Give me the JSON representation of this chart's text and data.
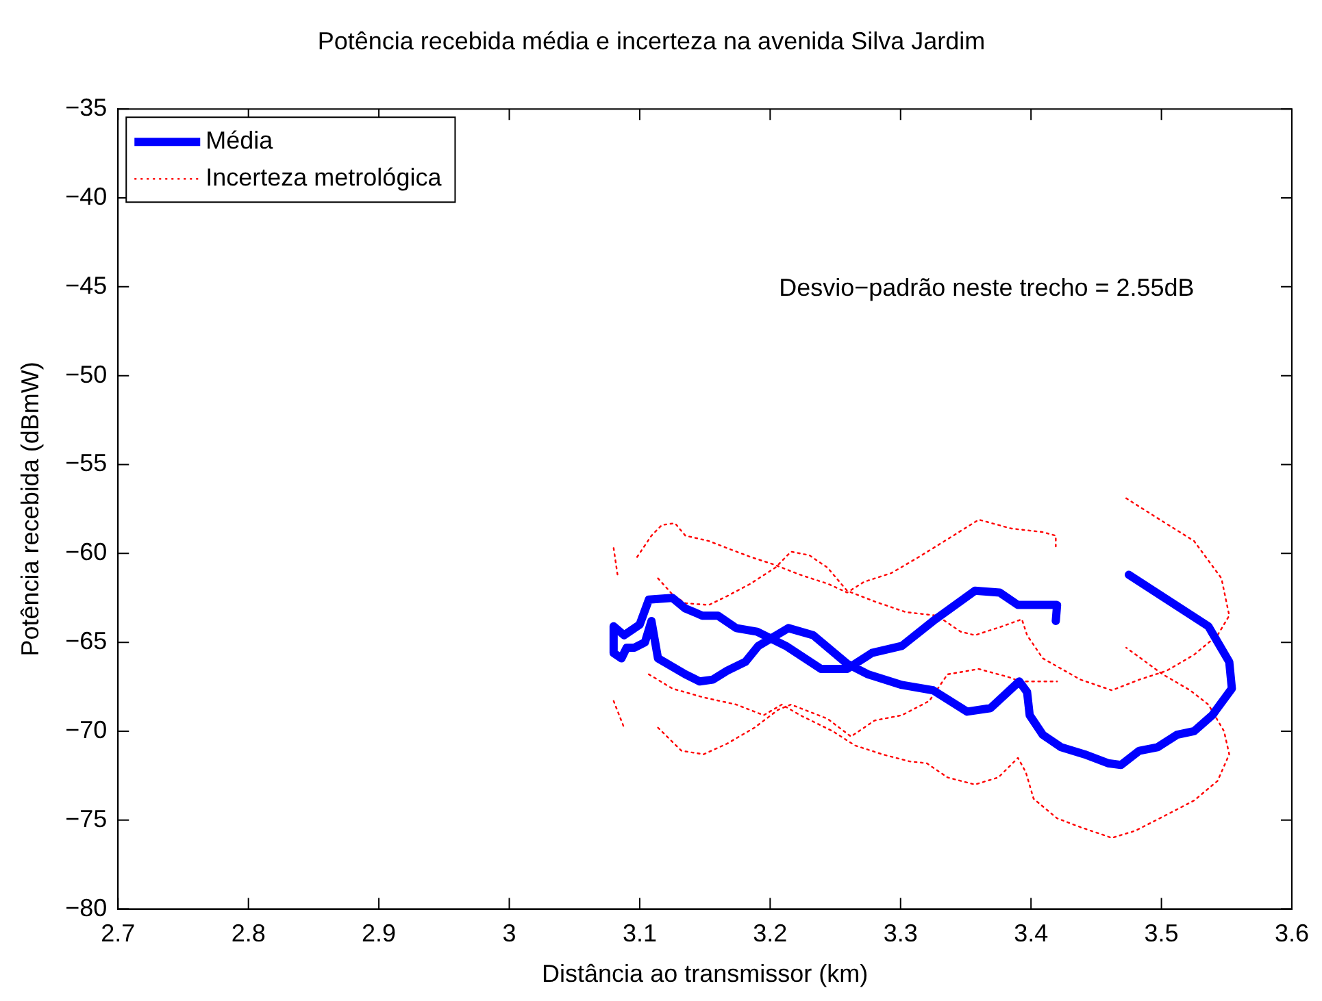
{
  "chart_data": {
    "type": "line",
    "title": "Potência recebida média e incerteza na avenida Silva Jardim",
    "xlabel": "Distância ao transmissor (km)",
    "ylabel": "Potência recebida (dBmW)",
    "xlim": [
      2.7,
      3.6
    ],
    "xticks": [
      2.7,
      2.8,
      2.9,
      3,
      3.1,
      3.2,
      3.3,
      3.4,
      3.5,
      3.6
    ],
    "ylim": [
      -80,
      -35
    ],
    "yticks": [
      {
        "value": -80,
        "label": "−80"
      },
      {
        "value": -75,
        "label": "−75"
      },
      {
        "value": -70,
        "label": "−70"
      },
      {
        "value": -65,
        "label": "−65"
      },
      {
        "value": -60,
        "label": "−60"
      },
      {
        "value": -55,
        "label": "−55"
      },
      {
        "value": -50,
        "label": "−50"
      },
      {
        "value": -45,
        "label": "−45"
      },
      {
        "value": -40,
        "label": "−40"
      },
      {
        "value": -35,
        "label": "−35"
      }
    ],
    "grid": false,
    "legend": "top left",
    "marker": "none",
    "annotations": [
      "Desvio−padrão neste trecho = 2.55dB"
    ],
    "series": [
      {
        "name": "Média",
        "color": "#0000ff",
        "line_style": "solid",
        "x": [
          3.419,
          3.42,
          3.39,
          3.376,
          3.357,
          3.325,
          3.301,
          3.278,
          3.259,
          3.239,
          3.212,
          3.19,
          3.174,
          3.16,
          3.148,
          3.135,
          3.125,
          3.107,
          3.1,
          3.088,
          3.08,
          3.08,
          3.086,
          3.09,
          3.096,
          3.104,
          3.109,
          3.114,
          3.135,
          3.146,
          3.156,
          3.167,
          3.181,
          3.191,
          3.214,
          3.233,
          3.259,
          3.275,
          3.301,
          3.325,
          3.351,
          3.369,
          3.391,
          3.397,
          3.399,
          3.409,
          3.423,
          3.441,
          3.459,
          3.469,
          3.483,
          3.497,
          3.512,
          3.525,
          3.539,
          3.554,
          3.552,
          3.536,
          3.475
        ],
        "values": [
          -63.8,
          -62.9,
          -62.9,
          -62.2,
          -62.1,
          -63.8,
          -65.2,
          -65.6,
          -66.5,
          -66.5,
          -65.2,
          -64.4,
          -64.2,
          -63.5,
          -63.5,
          -63.1,
          -62.5,
          -62.6,
          -64.0,
          -64.6,
          -64.1,
          -65.6,
          -65.9,
          -65.3,
          -65.3,
          -65.0,
          -63.8,
          -65.9,
          -66.8,
          -67.2,
          -67.1,
          -66.6,
          -66.1,
          -65.2,
          -64.2,
          -64.6,
          -66.2,
          -66.8,
          -67.4,
          -67.7,
          -68.9,
          -68.7,
          -67.2,
          -67.8,
          -69.1,
          -70.2,
          -70.9,
          -71.3,
          -71.8,
          -71.9,
          -71.1,
          -70.9,
          -70.2,
          -70.0,
          -69.1,
          -67.6,
          -66.1,
          -64.1,
          -61.2
        ]
      },
      {
        "name": "Incerteza metrológica",
        "color": "#ff0000",
        "line_style": "dotted",
        "x": [
          3.08,
          3.083,
          null,
          3.098,
          3.109,
          3.117,
          3.127,
          3.135,
          3.153,
          3.167,
          3.185,
          3.202,
          3.223,
          3.244,
          3.259,
          3.272,
          3.293,
          3.314,
          3.336,
          3.36,
          3.385,
          3.409,
          3.419,
          3.419,
          null,
          3.114,
          3.125,
          3.135,
          3.153,
          3.167,
          3.185,
          3.204,
          3.216,
          3.23,
          3.244,
          3.259,
          3.28,
          3.304,
          3.328,
          3.346,
          3.357,
          3.378,
          3.393,
          3.397,
          3.409,
          3.438,
          3.462,
          3.483,
          3.504,
          3.525,
          3.543,
          3.552,
          3.546,
          3.525,
          3.501,
          3.473,
          null,
          3.08,
          3.088,
          null,
          3.107,
          3.125,
          3.149,
          3.174,
          3.195,
          3.209,
          3.223,
          3.248,
          3.265,
          3.286,
          3.307,
          3.32,
          3.336,
          3.357,
          3.375,
          3.39,
          3.396,
          3.402,
          3.42,
          3.438,
          3.462,
          3.48,
          3.504,
          3.525,
          3.543,
          3.552,
          3.548,
          3.536,
          3.522,
          3.501,
          3.473,
          null,
          3.114,
          3.132,
          3.149,
          3.167,
          3.188,
          3.206,
          3.216,
          3.244,
          3.262,
          3.28,
          3.301,
          3.322,
          3.336,
          3.36,
          3.385,
          3.391,
          3.409,
          3.42
        ],
        "values": [
          -59.7,
          -61.2,
          null,
          -60.2,
          -59.0,
          -58.4,
          -58.3,
          -59.0,
          -59.3,
          -59.7,
          -60.2,
          -60.6,
          -61.2,
          -61.7,
          -62.2,
          -61.6,
          -61.1,
          -60.2,
          -59.2,
          -58.1,
          -58.6,
          -58.8,
          -59.0,
          -59.6,
          null,
          -61.4,
          -62.3,
          -62.8,
          -62.9,
          -62.4,
          -61.7,
          -60.8,
          -59.9,
          -60.1,
          -60.8,
          -62.1,
          -62.7,
          -63.3,
          -63.5,
          -64.4,
          -64.6,
          -64.1,
          -63.7,
          -64.6,
          -65.9,
          -67.1,
          -67.7,
          -67.1,
          -66.6,
          -65.7,
          -64.6,
          -63.5,
          -61.4,
          -59.3,
          -58.2,
          -56.9,
          null,
          -68.3,
          -69.8,
          null,
          -66.8,
          -67.6,
          -68.1,
          -68.5,
          -69.1,
          -68.5,
          -69.1,
          -70.0,
          -70.8,
          -71.3,
          -71.7,
          -71.8,
          -72.6,
          -73.0,
          -72.6,
          -71.5,
          -72.3,
          -73.8,
          -74.9,
          -75.4,
          -76.0,
          -75.6,
          -74.7,
          -73.9,
          -72.8,
          -71.3,
          -70.0,
          -68.5,
          -67.7,
          -66.8,
          -65.3,
          null,
          -69.8,
          -71.1,
          -71.3,
          -70.7,
          -69.8,
          -68.8,
          -68.5,
          -69.3,
          -70.3,
          -69.4,
          -69.1,
          -68.3,
          -66.8,
          -66.5,
          -67.0,
          -67.2,
          -67.2,
          -67.2
        ]
      }
    ]
  }
}
